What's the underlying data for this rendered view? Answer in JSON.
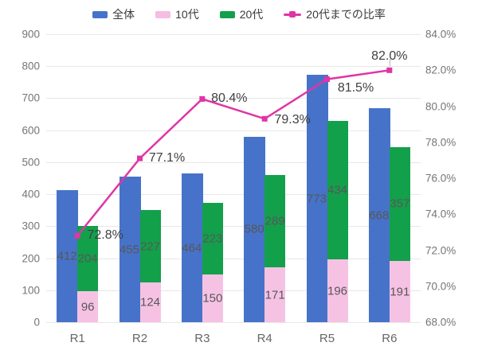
{
  "legend": [
    {
      "label": "全体",
      "color": "#4673c9",
      "type": "bar"
    },
    {
      "label": "10代",
      "color": "#f6bce2",
      "type": "bar"
    },
    {
      "label": "20代",
      "color": "#12a04b",
      "type": "bar"
    },
    {
      "label": "20代までの比率",
      "color": "#df35a6",
      "type": "line"
    }
  ],
  "chart_data": {
    "type": "bar+line",
    "categories": [
      "R1",
      "R2",
      "R3",
      "R4",
      "R5",
      "R6"
    ],
    "series": [
      {
        "name": "全体",
        "type": "bar",
        "axis": "left",
        "color": "#4673c9",
        "values": [
          412,
          455,
          464,
          580,
          773,
          668
        ]
      },
      {
        "name": "10代",
        "type": "stacked-bar",
        "axis": "left",
        "color": "#f6c2e4",
        "values": [
          96,
          124,
          150,
          171,
          196,
          191
        ]
      },
      {
        "name": "20代",
        "type": "stacked-bar",
        "axis": "left",
        "color": "#12a04b",
        "values": [
          204,
          227,
          223,
          289,
          434,
          357
        ]
      },
      {
        "name": "20代までの比率",
        "type": "line",
        "axis": "right",
        "color": "#df35a6",
        "values": [
          72.8,
          77.1,
          80.4,
          79.3,
          81.5,
          82.0
        ],
        "labels": [
          "72.8%",
          "77.1%",
          "80.4%",
          "79.3%",
          "81.5%",
          "82.0%"
        ],
        "label_offsets": [
          {
            "dx": 35,
            "dy": 0
          },
          {
            "dx": 34,
            "dy": 0
          },
          {
            "dx": 34,
            "dy": 0
          },
          {
            "dx": 35,
            "dy": 2
          },
          {
            "dx": 36,
            "dy": 11
          },
          {
            "dx": 0,
            "dy": -17,
            "leader": true
          }
        ]
      }
    ],
    "left_axis": {
      "min": 0,
      "max": 900,
      "step": 100,
      "ticks": [
        "0",
        "100",
        "200",
        "300",
        "400",
        "500",
        "600",
        "700",
        "800",
        "900"
      ]
    },
    "right_axis": {
      "min": 68,
      "max": 84,
      "step": 2,
      "ticks": [
        "68.0%",
        "70.0%",
        "72.0%",
        "74.0%",
        "76.0%",
        "78.0%",
        "80.0%",
        "82.0%",
        "84.0%"
      ]
    },
    "grid": true,
    "legend_position": "top",
    "background": "#ffffff"
  }
}
